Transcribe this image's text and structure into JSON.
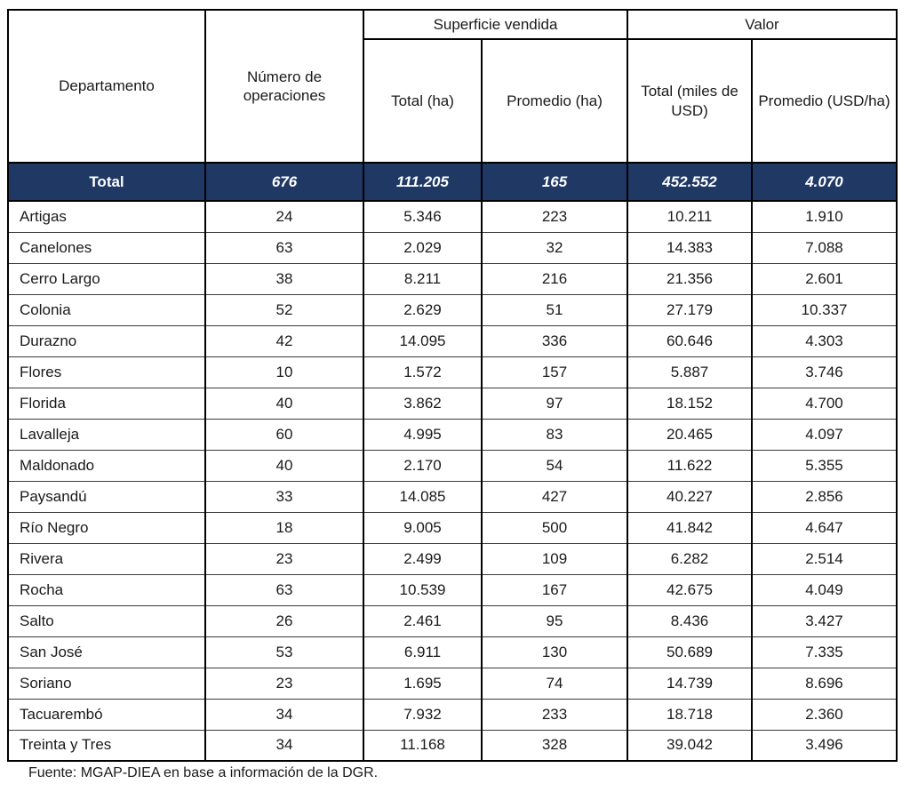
{
  "table": {
    "header": {
      "departamento": "Departamento",
      "operaciones": "Número de operaciones",
      "superficie_group": "Superficie vendida",
      "valor_group": "Valor",
      "superficie_total": "Total (ha)",
      "superficie_promedio": "Promedio (ha)",
      "valor_total": "Total (miles de USD)",
      "valor_promedio": "Promedio (USD/ha)"
    },
    "total_row": {
      "label": "Total",
      "operaciones": "676",
      "superficie_total": "111.205",
      "superficie_promedio": "165",
      "valor_total": "452.552",
      "valor_promedio": "4.070"
    },
    "rows": [
      [
        "Artigas",
        "24",
        "5.346",
        "223",
        "10.211",
        "1.910"
      ],
      [
        "Canelones",
        "63",
        "2.029",
        "32",
        "14.383",
        "7.088"
      ],
      [
        "Cerro Largo",
        "38",
        "8.211",
        "216",
        "21.356",
        "2.601"
      ],
      [
        "Colonia",
        "52",
        "2.629",
        "51",
        "27.179",
        "10.337"
      ],
      [
        "Durazno",
        "42",
        "14.095",
        "336",
        "60.646",
        "4.303"
      ],
      [
        "Flores",
        "10",
        "1.572",
        "157",
        "5.887",
        "3.746"
      ],
      [
        "Florida",
        "40",
        "3.862",
        "97",
        "18.152",
        "4.700"
      ],
      [
        "Lavalleja",
        "60",
        "4.995",
        "83",
        "20.465",
        "4.097"
      ],
      [
        "Maldonado",
        "40",
        "2.170",
        "54",
        "11.622",
        "5.355"
      ],
      [
        "Paysandú",
        "33",
        "14.085",
        "427",
        "40.227",
        "2.856"
      ],
      [
        "Río Negro",
        "18",
        "9.005",
        "500",
        "41.842",
        "4.647"
      ],
      [
        "Rivera",
        "23",
        "2.499",
        "109",
        "6.282",
        "2.514"
      ],
      [
        "Rocha",
        "63",
        "10.539",
        "167",
        "42.675",
        "4.049"
      ],
      [
        "Salto",
        "26",
        "2.461",
        "95",
        "8.436",
        "3.427"
      ],
      [
        "San José",
        "53",
        "6.911",
        "130",
        "50.689",
        "7.335"
      ],
      [
        "Soriano",
        "23",
        "1.695",
        "74",
        "14.739",
        "8.696"
      ],
      [
        "Tacuarembó",
        "34",
        "7.932",
        "233",
        "18.718",
        "2.360"
      ],
      [
        "Treinta y Tres",
        "34",
        "11.168",
        "328",
        "39.042",
        "3.496"
      ]
    ]
  },
  "footer": {
    "source": "Fuente: MGAP-DIEA en base a información de la DGR."
  },
  "colors": {
    "total_row_bg": "#1F3864",
    "total_row_text": "#FFFFFF",
    "border": "#000000"
  }
}
